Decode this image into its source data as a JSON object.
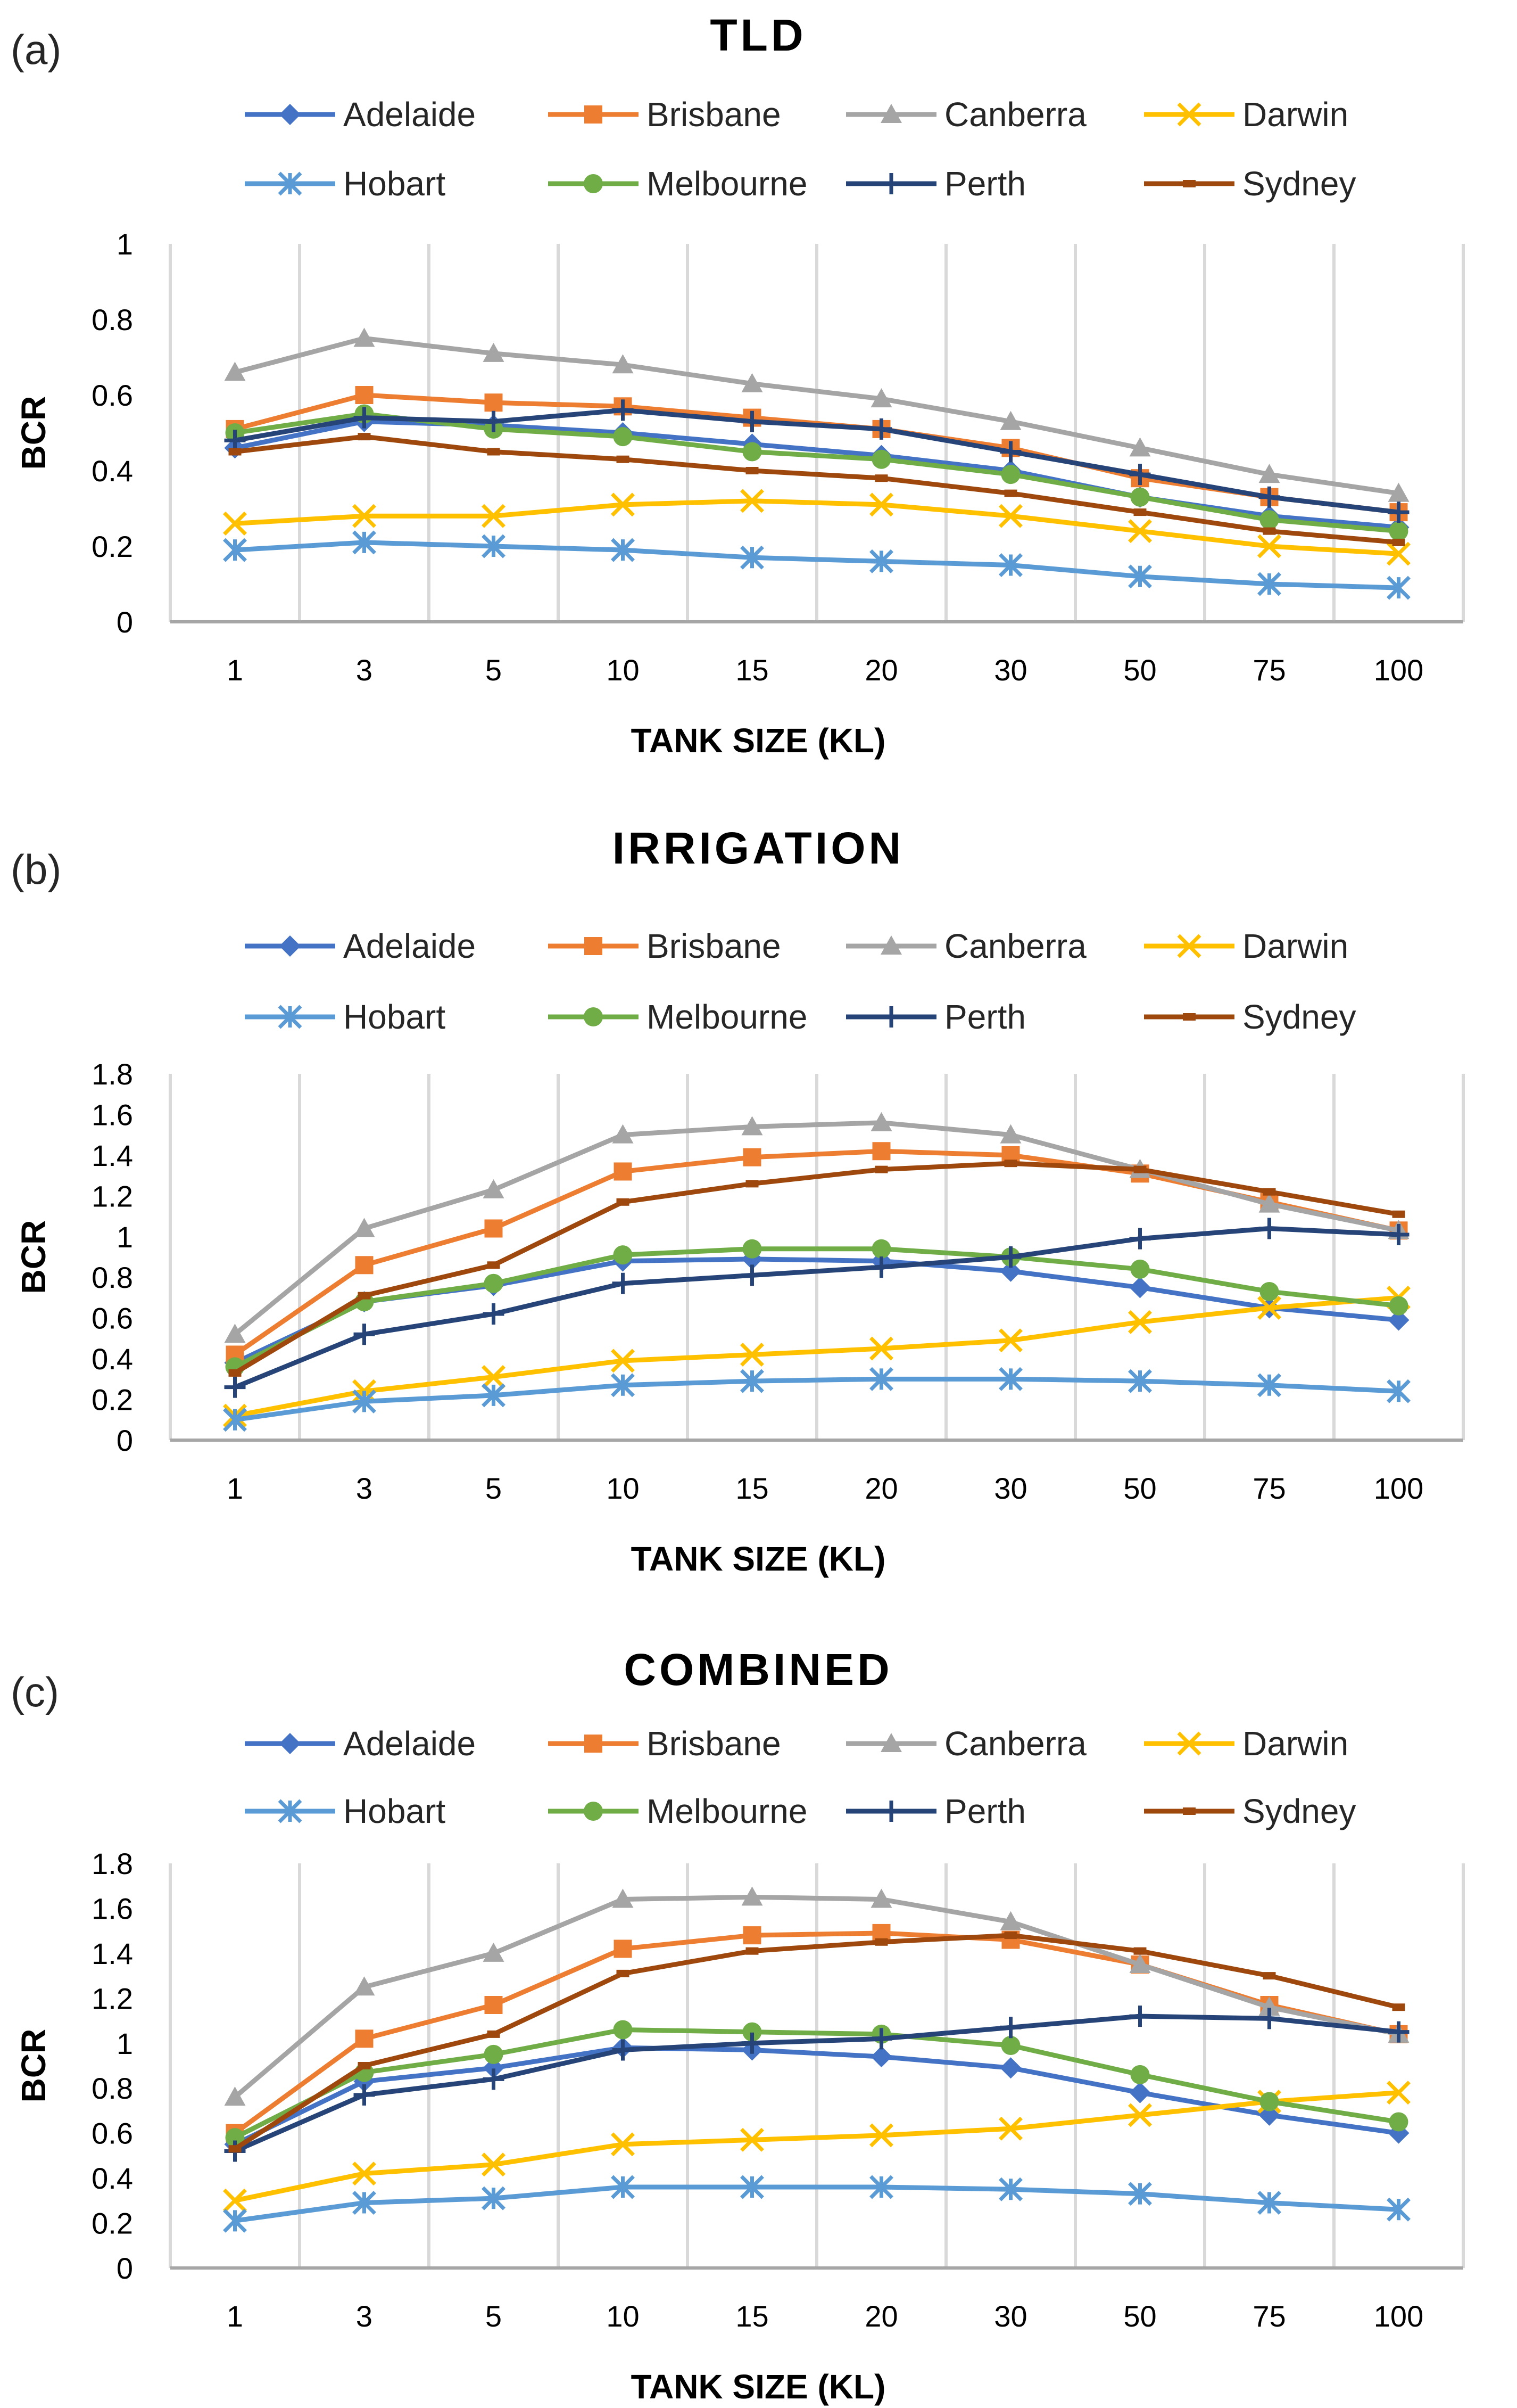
{
  "chart_data": [
    {
      "type": "line",
      "panel_label": "(a)",
      "title": "TLD",
      "xlabel": "TANK SIZE (KL)",
      "ylabel": "BCR",
      "categories": [
        "1",
        "3",
        "5",
        "10",
        "15",
        "20",
        "30",
        "50",
        "75",
        "100"
      ],
      "ylim": [
        0,
        1
      ],
      "yticks": [
        "0",
        "0.2",
        "0.4",
        "0.6",
        "0.8",
        "1"
      ],
      "legend": "top",
      "grid": "vertical",
      "series": [
        {
          "name": "Adelaide",
          "values": [
            0.46,
            0.53,
            0.52,
            0.5,
            0.47,
            0.44,
            0.4,
            0.33,
            0.28,
            0.25
          ]
        },
        {
          "name": "Brisbane",
          "values": [
            0.51,
            0.6,
            0.58,
            0.57,
            0.54,
            0.51,
            0.46,
            0.38,
            0.33,
            0.29
          ]
        },
        {
          "name": "Canberra",
          "values": [
            0.66,
            0.75,
            0.71,
            0.68,
            0.63,
            0.59,
            0.53,
            0.46,
            0.39,
            0.34
          ]
        },
        {
          "name": "Darwin",
          "values": [
            0.26,
            0.28,
            0.28,
            0.31,
            0.32,
            0.31,
            0.28,
            0.24,
            0.2,
            0.18
          ]
        },
        {
          "name": "Hobart",
          "values": [
            0.19,
            0.21,
            0.2,
            0.19,
            0.17,
            0.16,
            0.15,
            0.12,
            0.1,
            0.09
          ]
        },
        {
          "name": "Melbourne",
          "values": [
            0.5,
            0.55,
            0.51,
            0.49,
            0.45,
            0.43,
            0.39,
            0.33,
            0.27,
            0.24
          ]
        },
        {
          "name": "Perth",
          "values": [
            0.48,
            0.54,
            0.53,
            0.56,
            0.53,
            0.51,
            0.45,
            0.39,
            0.33,
            0.29
          ]
        },
        {
          "name": "Sydney",
          "values": [
            0.45,
            0.49,
            0.45,
            0.43,
            0.4,
            0.38,
            0.34,
            0.29,
            0.24,
            0.21
          ]
        }
      ]
    },
    {
      "type": "line",
      "panel_label": "(b)",
      "title": "IRRIGATION",
      "xlabel": "TANK SIZE (KL)",
      "ylabel": "BCR",
      "categories": [
        "1",
        "3",
        "5",
        "10",
        "15",
        "20",
        "30",
        "50",
        "75",
        "100"
      ],
      "ylim": [
        0,
        1.8
      ],
      "yticks": [
        "0",
        "0.2",
        "0.4",
        "0.6",
        "0.8",
        "1",
        "1.2",
        "1.4",
        "1.6",
        "1.8"
      ],
      "legend": "top",
      "grid": "vertical",
      "series": [
        {
          "name": "Adelaide",
          "values": [
            0.38,
            0.68,
            0.76,
            0.88,
            0.89,
            0.88,
            0.83,
            0.75,
            0.65,
            0.59
          ]
        },
        {
          "name": "Brisbane",
          "values": [
            0.42,
            0.86,
            1.04,
            1.32,
            1.39,
            1.42,
            1.4,
            1.31,
            1.17,
            1.03
          ]
        },
        {
          "name": "Canberra",
          "values": [
            0.52,
            1.04,
            1.23,
            1.5,
            1.54,
            1.56,
            1.5,
            1.33,
            1.16,
            1.03
          ]
        },
        {
          "name": "Darwin",
          "values": [
            0.12,
            0.24,
            0.31,
            0.39,
            0.42,
            0.45,
            0.49,
            0.58,
            0.65,
            0.7
          ]
        },
        {
          "name": "Hobart",
          "values": [
            0.1,
            0.19,
            0.22,
            0.27,
            0.29,
            0.3,
            0.3,
            0.29,
            0.27,
            0.24
          ]
        },
        {
          "name": "Melbourne",
          "values": [
            0.36,
            0.68,
            0.77,
            0.91,
            0.94,
            0.94,
            0.9,
            0.84,
            0.73,
            0.66
          ]
        },
        {
          "name": "Perth",
          "values": [
            0.26,
            0.52,
            0.62,
            0.77,
            0.81,
            0.85,
            0.9,
            0.99,
            1.04,
            1.01
          ]
        },
        {
          "name": "Sydney",
          "values": [
            0.33,
            0.71,
            0.86,
            1.17,
            1.26,
            1.33,
            1.36,
            1.33,
            1.22,
            1.11
          ]
        }
      ]
    },
    {
      "type": "line",
      "panel_label": "(c)",
      "title": "COMBINED",
      "xlabel": "TANK SIZE (KL)",
      "ylabel": "BCR",
      "categories": [
        "1",
        "3",
        "5",
        "10",
        "15",
        "20",
        "30",
        "50",
        "75",
        "100"
      ],
      "ylim": [
        0,
        1.8
      ],
      "yticks": [
        "0",
        "0.2",
        "0.4",
        "0.6",
        "0.8",
        "1",
        "1.2",
        "1.4",
        "1.6",
        "1.8"
      ],
      "legend": "top",
      "grid": "vertical",
      "series": [
        {
          "name": "Adelaide",
          "values": [
            0.55,
            0.83,
            0.89,
            0.98,
            0.97,
            0.94,
            0.89,
            0.78,
            0.68,
            0.6
          ]
        },
        {
          "name": "Brisbane",
          "values": [
            0.6,
            1.02,
            1.17,
            1.42,
            1.48,
            1.49,
            1.46,
            1.35,
            1.17,
            1.04
          ]
        },
        {
          "name": "Canberra",
          "values": [
            0.76,
            1.25,
            1.4,
            1.64,
            1.65,
            1.64,
            1.54,
            1.35,
            1.16,
            1.04
          ]
        },
        {
          "name": "Darwin",
          "values": [
            0.3,
            0.42,
            0.46,
            0.55,
            0.57,
            0.59,
            0.62,
            0.68,
            0.74,
            0.78
          ]
        },
        {
          "name": "Hobart",
          "values": [
            0.21,
            0.29,
            0.31,
            0.36,
            0.36,
            0.36,
            0.35,
            0.33,
            0.29,
            0.26
          ]
        },
        {
          "name": "Melbourne",
          "values": [
            0.58,
            0.87,
            0.95,
            1.06,
            1.05,
            1.04,
            0.99,
            0.86,
            0.74,
            0.65
          ]
        },
        {
          "name": "Perth",
          "values": [
            0.52,
            0.77,
            0.84,
            0.97,
            1.0,
            1.02,
            1.07,
            1.12,
            1.11,
            1.05
          ]
        },
        {
          "name": "Sydney",
          "values": [
            0.53,
            0.9,
            1.04,
            1.31,
            1.41,
            1.45,
            1.48,
            1.41,
            1.3,
            1.16
          ]
        }
      ]
    }
  ],
  "series_styles": {
    "Adelaide": {
      "color": "#4472C4",
      "marker": "diamond-icon"
    },
    "Brisbane": {
      "color": "#ED7D31",
      "marker": "square-icon"
    },
    "Canberra": {
      "color": "#A5A5A5",
      "marker": "triangle-icon"
    },
    "Darwin": {
      "color": "#FFC000",
      "marker": "x-icon"
    },
    "Hobart": {
      "color": "#5B9BD5",
      "marker": "asterisk-icon"
    },
    "Melbourne": {
      "color": "#70AD47",
      "marker": "circle-icon"
    },
    "Perth": {
      "color": "#264478",
      "marker": "plus-icon"
    },
    "Sydney": {
      "color": "#9E480E",
      "marker": "dash-icon"
    }
  },
  "grid_color": "#D9D9D9",
  "axis_color": "#A6A6A6"
}
